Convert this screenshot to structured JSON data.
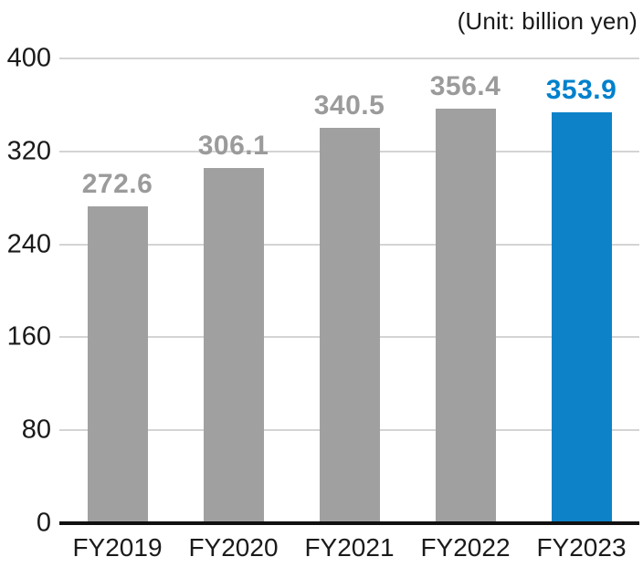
{
  "unit_note": "(Unit: billion yen)",
  "colors": {
    "bar_default": "#a0a0a0",
    "bar_highlight": "#0d82c9",
    "value_label_default": "#9b9b9b",
    "value_label_highlight": "#0081cc",
    "axis_text": "#1a1a1a",
    "gridline": "#d4d4d4",
    "baseline": "#111111"
  },
  "chart_data": {
    "type": "bar",
    "title": "",
    "unit": "(Unit: billion yen)",
    "categories": [
      "FY2019",
      "FY2020",
      "FY2021",
      "FY2022",
      "FY2023"
    ],
    "values": [
      272.6,
      306.1,
      340.5,
      356.4,
      353.9
    ],
    "value_labels": [
      "272.6",
      "306.1",
      "340.5",
      "356.4",
      "353.9"
    ],
    "highlight_index": 4,
    "xlabel": "",
    "ylabel": "",
    "ylim": [
      0,
      400
    ],
    "yticks": [
      0,
      80,
      160,
      240,
      320,
      400
    ],
    "grid": "horizontal",
    "legend": "none"
  }
}
